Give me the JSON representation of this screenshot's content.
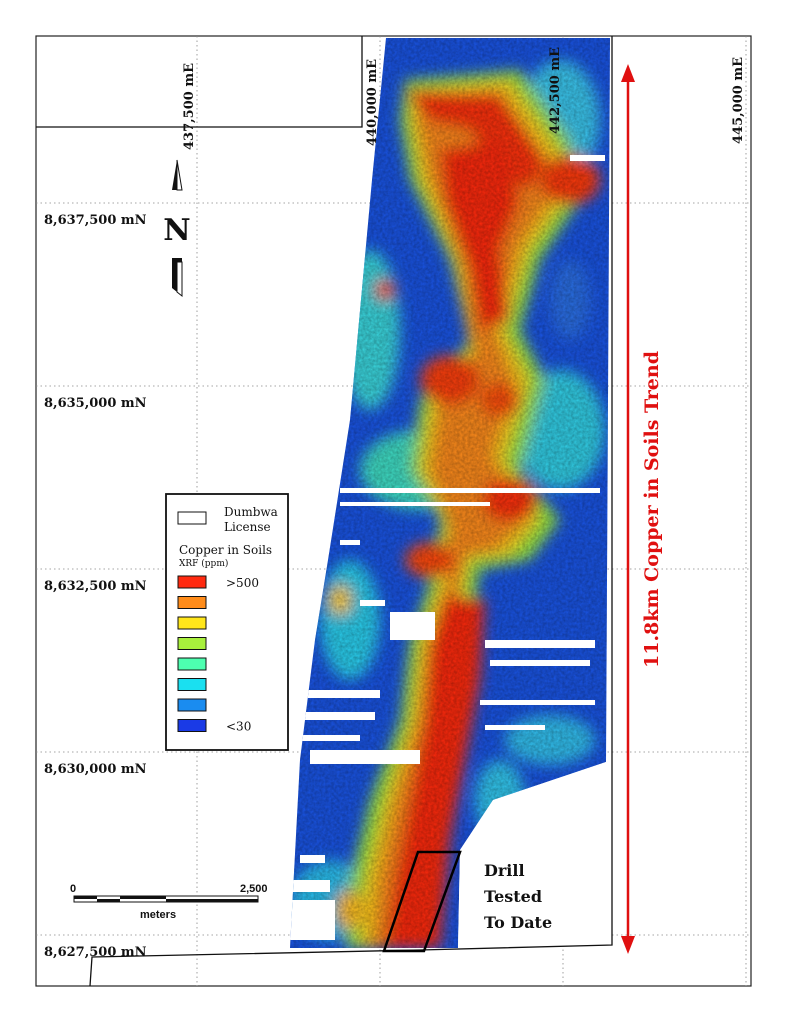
{
  "grid": {
    "easting_labels": [
      "437,500 mE",
      "440,000 mE",
      "442,500 mE",
      "445,000 mE"
    ],
    "northing_labels": [
      "8,637,500 mN",
      "8,635,000 mN",
      "8,632,500 mN",
      "8,630,000 mN",
      "8,627,500 mN"
    ]
  },
  "north_arrow": {
    "letter": "N"
  },
  "trend": {
    "label": "11.8km Copper in Soils Trend",
    "color": "#e01010"
  },
  "drill": {
    "line1": "Drill",
    "line2": "Tested",
    "line3": "To Date"
  },
  "scale_bar": {
    "start": "0",
    "end": "2,500",
    "unit": "meters"
  },
  "legend": {
    "license_label_1": "Dumbwa",
    "license_label_2": "License",
    "title": "Copper in Soils",
    "subtitle": "XRF (ppm)",
    "classes": [
      {
        "color": "#ff2a10",
        "label": ">500"
      },
      {
        "color": "#ff8c1a",
        "label": ""
      },
      {
        "color": "#ffe61a",
        "label": ""
      },
      {
        "color": "#a8f03c",
        "label": ""
      },
      {
        "color": "#4dffb0",
        "label": ""
      },
      {
        "color": "#1ae0f0",
        "label": ""
      },
      {
        "color": "#1a8cf0",
        "label": ""
      },
      {
        "color": "#1a3ae6",
        "label": "<30"
      }
    ]
  }
}
